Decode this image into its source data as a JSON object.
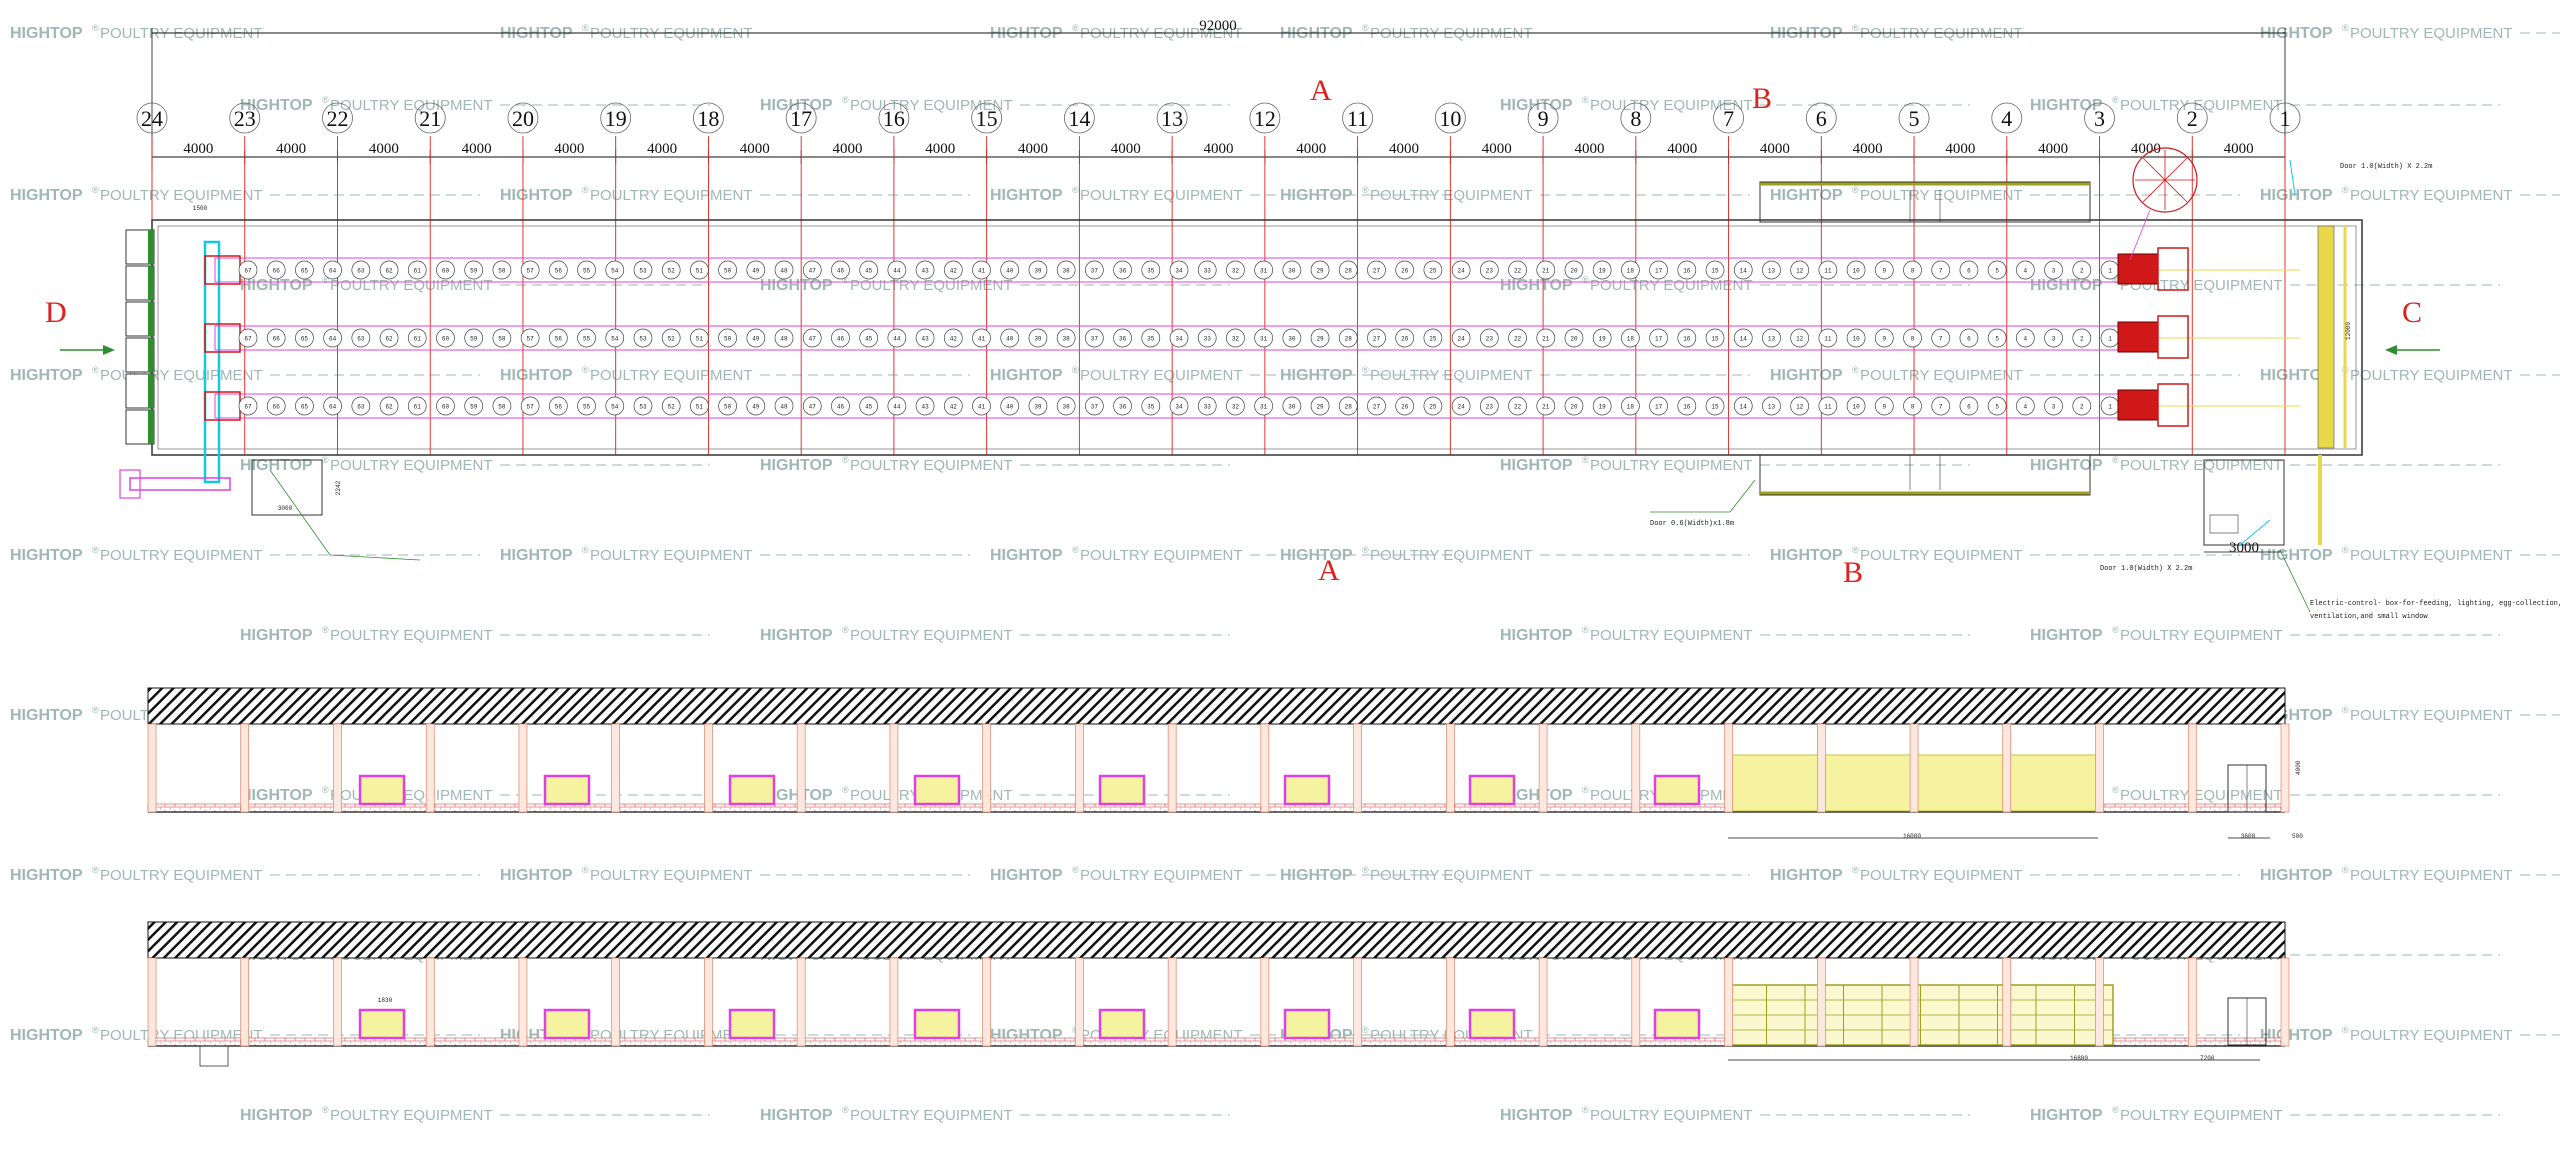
{
  "watermark": {
    "word": "HIGHTOP",
    "mark": "®",
    "sub": "POULTRY EQUIPMENT"
  },
  "total_length_label": "92000",
  "axis_labels": [
    "24",
    "23",
    "22",
    "21",
    "20",
    "19",
    "18",
    "17",
    "16",
    "15",
    "14",
    "13",
    "12",
    "11",
    "10",
    "9",
    "8",
    "7",
    "6",
    "5",
    "4",
    "3",
    "2",
    "1"
  ],
  "bay_label": "4000",
  "section_labels": {
    "A": "A",
    "B": "B",
    "C": "C",
    "D": "D"
  },
  "cage_count_per_row": 67,
  "notes": {
    "door_top": "Door 1.0(Width) X 2.2m",
    "door_bottom": "Door 1.0(Width) X 2.2m",
    "door_mid": "Door 0.6(Width)x1.8m",
    "control_box": "Electric-control- box-for-feeding, lighting, egg-collection,",
    "control_box_2": "ventilation,and small window",
    "small_room": "3000",
    "cooling_pad_width": "16000",
    "height_right": "4000",
    "door_w": "3600",
    "door_w2": "500",
    "window_dim": "1830",
    "left_box_dims": "3000",
    "left_box_dims_2": "1500",
    "end_dim": "7200",
    "sec_dim": "16800",
    "vert_dim": "2242",
    "end_width": "12000"
  },
  "colors": {
    "grid": "#e0201c",
    "cage": "#e040e0",
    "building": "#333333",
    "yellow": "#f6f3a0",
    "roof": "#222222",
    "cyan": "#15c8e0",
    "green": "#2f8f2f"
  }
}
